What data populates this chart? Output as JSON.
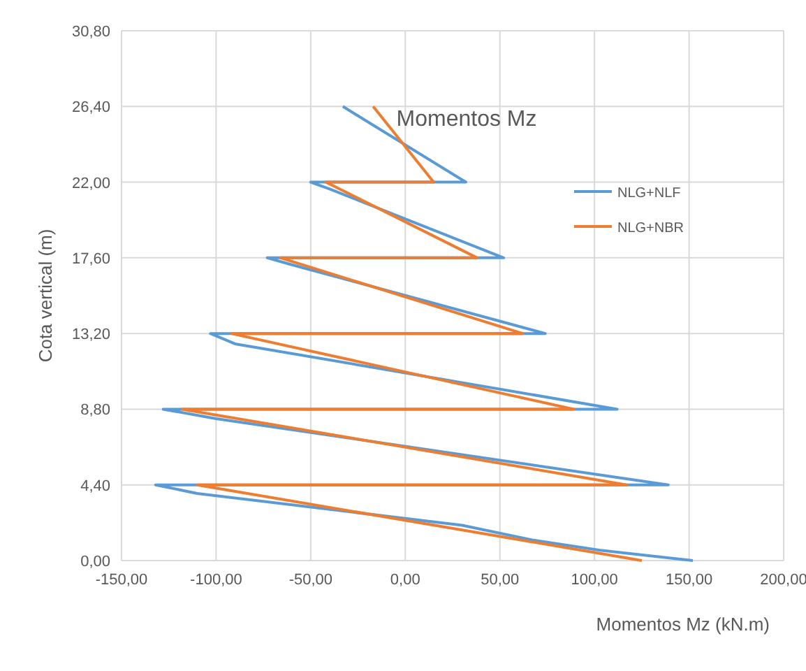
{
  "chart_data": {
    "type": "line",
    "title": "Momentos Mz",
    "xlabel": "Momentos Mz (kN.m)",
    "ylabel": "Cota vertical (m)",
    "xlim": [
      -150,
      200
    ],
    "xticks": [
      {
        "value": -150,
        "label": "-150,00"
      },
      {
        "value": -100,
        "label": "-100,00"
      },
      {
        "value": -50,
        "label": "-50,00"
      },
      {
        "value": 0,
        "label": "0,00"
      },
      {
        "value": 50,
        "label": "50,00"
      },
      {
        "value": 100,
        "label": "100,00"
      },
      {
        "value": 150,
        "label": "150,00"
      },
      {
        "value": 200,
        "label": "200,00"
      }
    ],
    "ylim": [
      0,
      30.8
    ],
    "yticks": [
      {
        "value": 0,
        "label": "0,00"
      },
      {
        "value": 4.4,
        "label": "4,40"
      },
      {
        "value": 8.8,
        "label": "8,80"
      },
      {
        "value": 13.2,
        "label": "13,20"
      },
      {
        "value": 17.6,
        "label": "17,60"
      },
      {
        "value": 22,
        "label": "22,00"
      },
      {
        "value": 26.4,
        "label": "26,40"
      },
      {
        "value": 30.8,
        "label": "30,80"
      }
    ],
    "grid": true,
    "legend": "right",
    "line_style": "solid",
    "series": [
      {
        "name": "NLG+NLF",
        "color": "#5b9bd5",
        "x": [
          -33,
          32,
          -50,
          -40,
          52,
          -73,
          -60,
          74,
          -103,
          -90,
          112,
          -128,
          -100,
          139,
          -132,
          -110,
          30,
          67,
          103,
          152
        ],
        "values": [
          26.4,
          22,
          22,
          21.6,
          17.6,
          17.6,
          17.2,
          13.2,
          13.2,
          12.6,
          8.8,
          8.8,
          8.25,
          4.4,
          4.4,
          3.9,
          2.05,
          1.2,
          0.6,
          0
        ]
      },
      {
        "name": "NLG+NBR",
        "color": "#ed7d31",
        "x": [
          -17,
          15,
          -42,
          38,
          -66,
          62,
          -92,
          89,
          -118,
          117,
          -110,
          125
        ],
        "values": [
          26.4,
          22,
          22,
          17.6,
          17.6,
          13.2,
          13.2,
          8.8,
          8.8,
          4.4,
          4.4,
          0
        ]
      }
    ]
  }
}
